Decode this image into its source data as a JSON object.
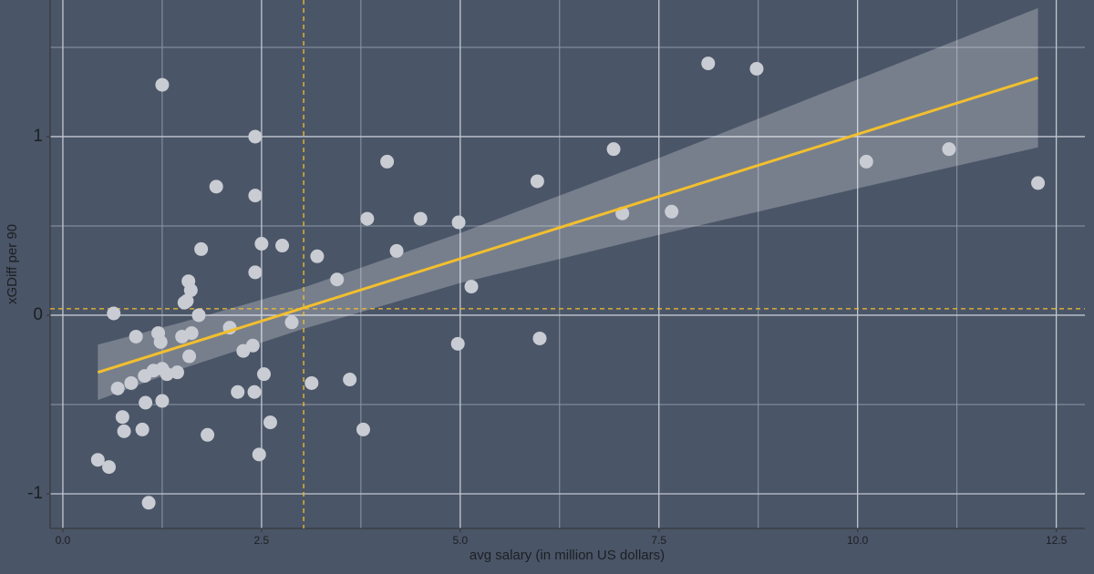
{
  "chart_data": {
    "type": "scatter",
    "x_label": "avg salary (in million US dollars)",
    "y_label": "xGDiff per 90",
    "x": [
      0.44,
      0.58,
      0.64,
      0.69,
      0.75,
      0.77,
      0.86,
      0.92,
      1.0,
      1.03,
      1.04,
      1.08,
      1.14,
      1.2,
      1.23,
      1.25,
      1.25,
      1.25,
      1.31,
      1.44,
      1.5,
      1.53,
      1.56,
      1.58,
      1.59,
      1.61,
      1.62,
      1.71,
      1.74,
      1.82,
      1.93,
      2.1,
      2.2,
      2.27,
      2.39,
      2.41,
      2.42,
      2.42,
      2.42,
      2.47,
      2.5,
      2.53,
      2.61,
      2.76,
      2.88,
      3.13,
      3.2,
      3.45,
      3.61,
      3.78,
      3.83,
      4.08,
      4.2,
      4.5,
      4.97,
      4.98,
      5.14,
      5.97,
      6.0,
      6.93,
      7.04,
      7.66,
      8.12,
      8.73,
      10.11,
      11.15,
      12.27
    ],
    "y": [
      -0.81,
      -0.85,
      0.01,
      -0.41,
      -0.57,
      -0.65,
      -0.38,
      -0.12,
      -0.64,
      -0.34,
      -0.49,
      -1.05,
      -0.31,
      -0.1,
      -0.15,
      1.29,
      -0.3,
      -0.48,
      -0.33,
      -0.32,
      -0.12,
      0.07,
      0.08,
      0.19,
      -0.23,
      0.14,
      -0.1,
      0.0,
      0.37,
      -0.67,
      0.72,
      -0.07,
      -0.43,
      -0.2,
      -0.17,
      -0.43,
      1.0,
      0.67,
      0.24,
      -0.78,
      0.4,
      -0.33,
      -0.6,
      0.39,
      -0.04,
      -0.38,
      0.33,
      0.2,
      -0.36,
      -0.64,
      0.54,
      0.86,
      0.36,
      0.54,
      -0.16,
      0.52,
      0.16,
      0.75,
      -0.13,
      0.93,
      0.57,
      0.58,
      1.41,
      1.38,
      0.86,
      0.93,
      0.74
    ],
    "color": "#c9ccd3",
    "fit": {
      "x": [
        0.44,
        12.27
      ],
      "y": [
        -0.32,
        1.33
      ],
      "color": "#f2bf2e"
    },
    "band": {
      "x": [
        0.44,
        1.5,
        3,
        5,
        7.5,
        10,
        12.27
      ],
      "lower": [
        -0.475,
        -0.3,
        -0.08,
        0.18,
        0.45,
        0.71,
        0.94
      ],
      "upper": [
        -0.165,
        -0.04,
        0.15,
        0.46,
        0.88,
        1.32,
        1.72
      ],
      "color": "#ffffff"
    },
    "vline": 3.03,
    "hline": 0.036,
    "xlim": [
      -0.16,
      12.86
    ],
    "ylim": [
      -1.194,
      1.765
    ],
    "xticks": [
      {
        "value": 0,
        "label": "0.0"
      },
      2.5,
      {
        "value": 5,
        "label": "5.0"
      },
      {
        "value": 7.5,
        "label": "7.5"
      },
      {
        "value": 10,
        "label": "10.0"
      },
      12.5
    ],
    "yticks": [
      -1,
      0,
      1
    ],
    "x_minor_grid": [
      1.25,
      3.75,
      6.25,
      8.75,
      11.25
    ],
    "y_minor_grid": [
      -0.5,
      0.5,
      1.5
    ],
    "grid": true
  }
}
